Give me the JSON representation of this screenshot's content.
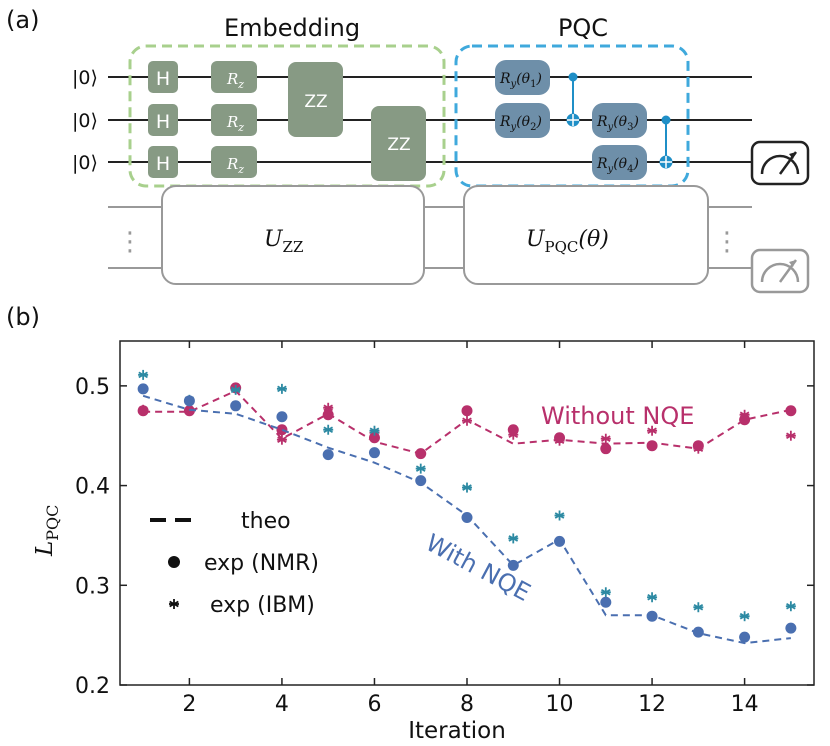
{
  "panel_a": {
    "label": "(a)",
    "embedding_title": "Embedding",
    "pqc_title": "PQC",
    "ket": "|0⟩",
    "h_gate": "H",
    "rz_gate": "R",
    "rz_sub": "z",
    "zz_gate": "ZZ",
    "ry_gates": [
      {
        "base": "R",
        "sub": "y",
        "arg": "(θ",
        "idx": "1",
        "close": ")"
      },
      {
        "base": "R",
        "sub": "y",
        "arg": "(θ",
        "idx": "2",
        "close": ")"
      },
      {
        "base": "R",
        "sub": "y",
        "arg": "(θ",
        "idx": "3",
        "close": ")"
      },
      {
        "base": "R",
        "sub": "y",
        "arg": "(θ",
        "idx": "4",
        "close": ")"
      }
    ],
    "uzz_label": "U",
    "uzz_sub": "ZZ",
    "upqc_label": "U",
    "upqc_sub": "PQC",
    "upqc_arg": "(θ)",
    "ellipsis": "⋮"
  },
  "panel_b": {
    "label": "(b)"
  },
  "colors": {
    "embedding_box": "#a8d08d",
    "pqc_box": "#3fa9dc",
    "gate_green": "#879a84",
    "gate_blue": "#6e8fa9",
    "cnot": "#1f8fc7",
    "magenta": "#b8306b",
    "blue": "#4a6fb0",
    "teal": "#2d8aa3"
  },
  "chart_data": {
    "type": "line",
    "xlabel": "Iteration",
    "ylabel": "L",
    "ylabel_sub": "PQC",
    "xlim": [
      0.5,
      15.5
    ],
    "ylim": [
      0.2,
      0.545
    ],
    "xticks": [
      2,
      4,
      6,
      8,
      10,
      12,
      14
    ],
    "yticks": [
      0.2,
      0.3,
      0.4,
      0.5
    ],
    "ytick_labels": [
      "0.2",
      "0.3",
      "0.4",
      "0.5"
    ],
    "legend": [
      {
        "marker": "dash",
        "label": "theo"
      },
      {
        "marker": "dot",
        "label": "exp (NMR)"
      },
      {
        "marker": "star",
        "label": "exp (IBM)"
      }
    ],
    "annotations": [
      {
        "text": "Without NQE",
        "series": "without"
      },
      {
        "text": "With NQE",
        "series": "with"
      }
    ],
    "series": [
      {
        "name": "Without NQE",
        "x": [
          1,
          2,
          3,
          4,
          5,
          6,
          7,
          8,
          9,
          10,
          11,
          12,
          13,
          14,
          15
        ],
        "theo": [
          0.474,
          0.474,
          0.495,
          0.447,
          0.472,
          0.444,
          0.432,
          0.466,
          0.442,
          0.446,
          0.442,
          0.443,
          0.437,
          0.466,
          0.476
        ],
        "nmr": [
          0.475,
          0.475,
          0.498,
          0.456,
          0.471,
          0.448,
          0.432,
          0.475,
          0.456,
          0.448,
          0.437,
          0.44,
          0.44,
          0.466,
          0.475
        ],
        "ibm": [
          0.476,
          0.485,
          0.498,
          0.446,
          0.478,
          0.453,
          0.432,
          0.465,
          0.451,
          0.445,
          0.447,
          0.455,
          0.437,
          0.471,
          0.45
        ]
      },
      {
        "name": "With NQE",
        "x": [
          1,
          2,
          3,
          4,
          5,
          6,
          7,
          8,
          9,
          10,
          11,
          12,
          13,
          14,
          15
        ],
        "theo": [
          0.49,
          0.476,
          0.472,
          0.456,
          0.438,
          0.423,
          0.403,
          0.37,
          0.32,
          0.346,
          0.27,
          0.27,
          0.252,
          0.242,
          0.247
        ],
        "nmr": [
          0.497,
          0.485,
          0.48,
          0.469,
          0.431,
          0.433,
          0.405,
          0.368,
          0.32,
          0.344,
          0.283,
          0.269,
          0.253,
          0.248,
          0.257
        ],
        "ibm": [
          0.511,
          0.486,
          0.496,
          0.497,
          0.456,
          0.455,
          0.417,
          0.398,
          0.347,
          0.37,
          0.293,
          0.288,
          0.278,
          0.269,
          0.279
        ]
      }
    ]
  }
}
